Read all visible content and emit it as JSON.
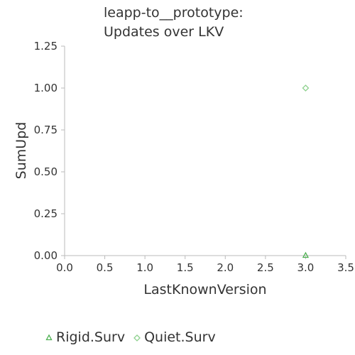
{
  "chart_data": {
    "type": "scatter",
    "title_lines": [
      "leapp-to__prototype:",
      "Updates over LKV"
    ],
    "xlabel": "LastKnownVersion",
    "ylabel": "SumUpd",
    "xlim": [
      0,
      3.5
    ],
    "ylim": [
      0,
      1.25
    ],
    "x_ticks": [
      "0.0",
      "0.5",
      "1.0",
      "1.5",
      "2.0",
      "2.5",
      "3.0",
      "3.5"
    ],
    "y_ticks": [
      "0.00",
      "0.25",
      "0.50",
      "0.75",
      "1.00",
      "1.25"
    ],
    "grid": false,
    "legend_position": "bottom",
    "series": [
      {
        "name": "Rigid.Surv",
        "marker": "triangle",
        "color": "#4caf50",
        "points": [
          {
            "x": 3.0,
            "y": 0.0
          }
        ]
      },
      {
        "name": "Quiet.Surv",
        "marker": "diamond",
        "color": "#8fd18f",
        "points": [
          {
            "x": 3.0,
            "y": 1.0
          }
        ]
      }
    ]
  }
}
